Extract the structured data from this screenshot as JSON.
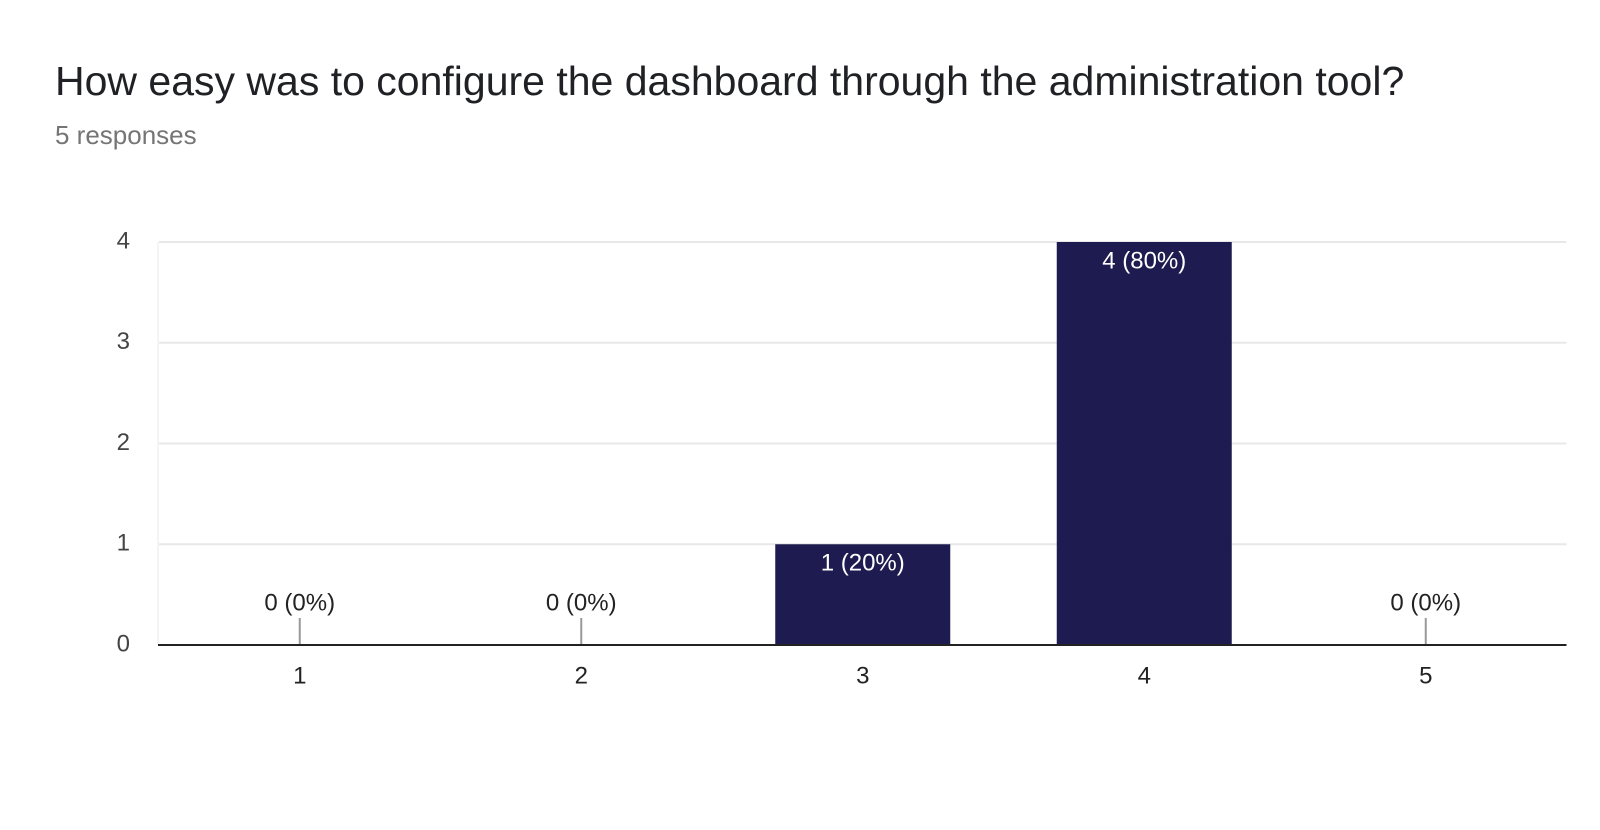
{
  "chart_data": {
    "type": "bar",
    "title": "How easy was to configure the dashboard through the administration tool?",
    "subtitle": "5 responses",
    "categories": [
      "1",
      "2",
      "3",
      "4",
      "5"
    ],
    "values": [
      0,
      0,
      1,
      4,
      0
    ],
    "value_labels": [
      "0 (0%)",
      "0 (0%)",
      "1 (20%)",
      "4 (80%)",
      "0 (0%)"
    ],
    "color": "#1d1b4f",
    "ylim": [
      0,
      4
    ],
    "yticks": [
      0,
      1,
      2,
      3,
      4
    ],
    "grid": true
  }
}
